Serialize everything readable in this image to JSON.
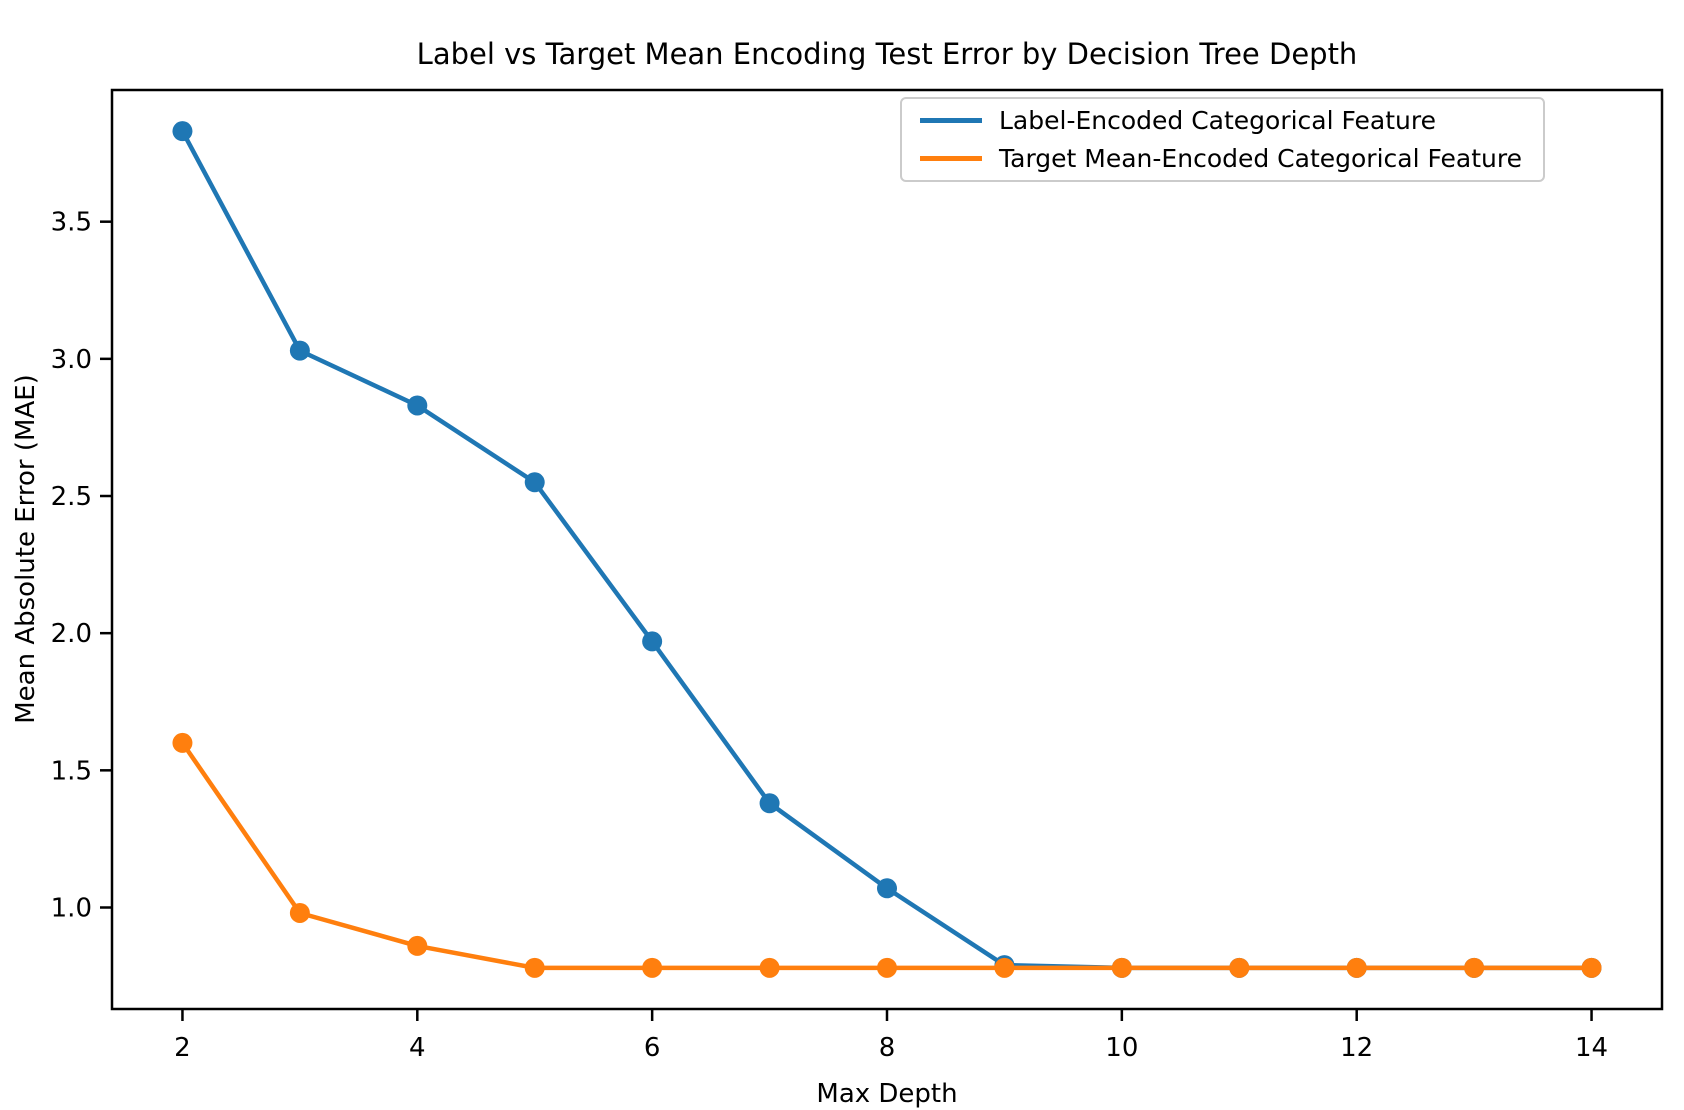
{
  "window": {
    "background": "#ffffff"
  },
  "chart_data": {
    "type": "line",
    "title": "Label vs Target Mean Encoding Test Error by Decision Tree Depth",
    "xlabel": "Max Depth",
    "ylabel": "Mean Absolute Error (MAE)",
    "x": [
      2,
      3,
      4,
      5,
      6,
      7,
      8,
      9,
      10,
      11,
      12,
      13,
      14
    ],
    "series": [
      {
        "name": "Label-Encoded Categorical Feature",
        "color": "#1f77b4",
        "values": [
          3.83,
          3.03,
          2.83,
          2.55,
          1.97,
          1.38,
          1.07,
          0.79,
          0.78,
          0.78,
          0.78,
          0.78,
          0.78
        ]
      },
      {
        "name": "Target Mean-Encoded Categorical Feature",
        "color": "#ff7f0e",
        "values": [
          1.6,
          0.98,
          0.86,
          0.78,
          0.78,
          0.78,
          0.78,
          0.78,
          0.78,
          0.78,
          0.78,
          0.78,
          0.78
        ]
      }
    ],
    "xticks": [
      2,
      4,
      6,
      8,
      10,
      12,
      14
    ],
    "xtick_labels": [
      "2",
      "4",
      "6",
      "8",
      "10",
      "12",
      "14"
    ],
    "yticks": [
      1.0,
      1.5,
      2.0,
      2.5,
      3.0,
      3.5
    ],
    "ytick_labels": [
      "1.0",
      "1.5",
      "2.0",
      "2.5",
      "3.0",
      "3.5"
    ],
    "xlim": [
      1.4,
      14.6
    ],
    "ylim": [
      0.63,
      3.98
    ],
    "grid": false,
    "legend_position": "upper right",
    "marker": "o",
    "axis_color": "#000000",
    "text_color": "#000000"
  }
}
